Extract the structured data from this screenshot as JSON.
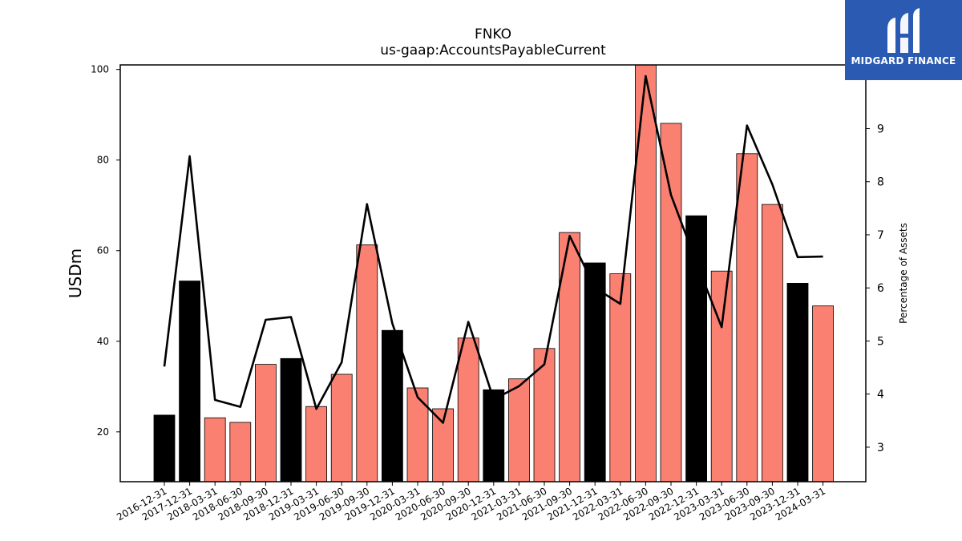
{
  "chart_data": {
    "type": "bar",
    "title": "FNKO",
    "subtitle": "us-gaap:AccountsPayableCurrent",
    "ylabel": "USDm",
    "y2label": "Percentage of Assets",
    "ylim": [
      9,
      101
    ],
    "y2lim": [
      2.35,
      10.2
    ],
    "yticks": [
      20,
      40,
      60,
      80,
      100
    ],
    "y2ticks": [
      3,
      4,
      5,
      6,
      7,
      8,
      9
    ],
    "categories": [
      "2016-12-31",
      "2017-12-31",
      "2018-03-31",
      "2018-06-30",
      "2018-09-30",
      "2018-12-31",
      "2019-03-31",
      "2019-06-30",
      "2019-09-30",
      "2019-12-31",
      "2020-03-31",
      "2020-06-30",
      "2020-09-30",
      "2020-12-31",
      "2021-03-31",
      "2021-06-30",
      "2021-09-30",
      "2021-12-31",
      "2022-03-31",
      "2022-06-30",
      "2022-09-30",
      "2022-12-31",
      "2023-03-31",
      "2023-06-30",
      "2023-09-30",
      "2023-12-31",
      "2024-03-31"
    ],
    "series": [
      {
        "kind": "bar",
        "values": [
          23.7,
          53.3,
          23.1,
          22.1,
          34.9,
          36.2,
          25.6,
          32.7,
          61.3,
          42.4,
          29.7,
          25.1,
          40.7,
          29.3,
          31.7,
          38.4,
          64.0,
          57.3,
          54.9,
          101.0,
          88.1,
          67.7,
          55.5,
          81.4,
          70.2,
          52.8,
          47.8
        ],
        "year_end": [
          true,
          true,
          false,
          false,
          false,
          true,
          false,
          false,
          false,
          true,
          false,
          false,
          false,
          true,
          false,
          false,
          false,
          true,
          false,
          false,
          false,
          true,
          false,
          false,
          false,
          true,
          false
        ]
      },
      {
        "kind": "line",
        "axis": "right",
        "values": [
          4.52,
          8.48,
          3.89,
          3.76,
          5.4,
          5.45,
          3.72,
          4.6,
          7.58,
          5.33,
          3.94,
          3.46,
          5.36,
          3.9,
          4.15,
          4.56,
          6.98,
          6.0,
          5.7,
          9.99,
          7.75,
          6.48,
          5.26,
          9.06,
          7.95,
          6.58,
          6.59
        ]
      }
    ],
    "colors": {
      "bar_quarter": "#fa8072",
      "bar_year_end": "#000000",
      "line": "#000000"
    },
    "grid": false,
    "legend": "none"
  },
  "logo": {
    "text": "MIDGARD FINANCE",
    "background": "#2b5ab3"
  }
}
